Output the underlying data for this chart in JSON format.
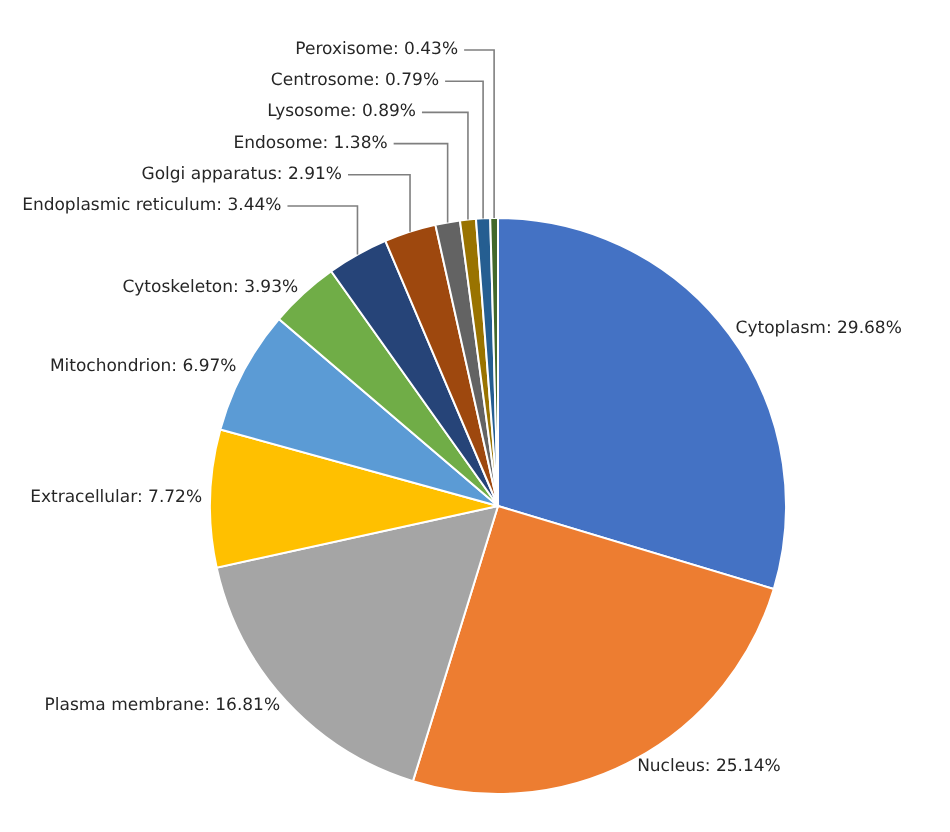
{
  "chart_data": {
    "type": "pie",
    "categories": [
      "Cytoplasm",
      "Nucleus",
      "Plasma membrane",
      "Extracellular",
      "Mitochondrion",
      "Cytoskeleton",
      "Endoplasmic reticulum",
      "Golgi apparatus",
      "Endosome",
      "Lysosome",
      "Centrosome",
      "Peroxisome"
    ],
    "values": [
      29.68,
      25.14,
      16.81,
      7.72,
      6.97,
      3.93,
      3.44,
      2.91,
      1.38,
      0.89,
      0.79,
      0.43
    ],
    "value_labels": [
      "29.68%",
      "25.14%",
      "16.81%",
      "7.72%",
      "6.97%",
      "3.93%",
      "3.44%",
      "2.91%",
      "1.38%",
      "0.89%",
      "0.79%",
      "0.43%"
    ],
    "colors": [
      "#4472c4",
      "#ed7d31",
      "#a5a5a5",
      "#ffc000",
      "#5b9bd5",
      "#70ad47",
      "#264478",
      "#9e480e",
      "#636363",
      "#997300",
      "#255e91",
      "#43682b"
    ]
  }
}
